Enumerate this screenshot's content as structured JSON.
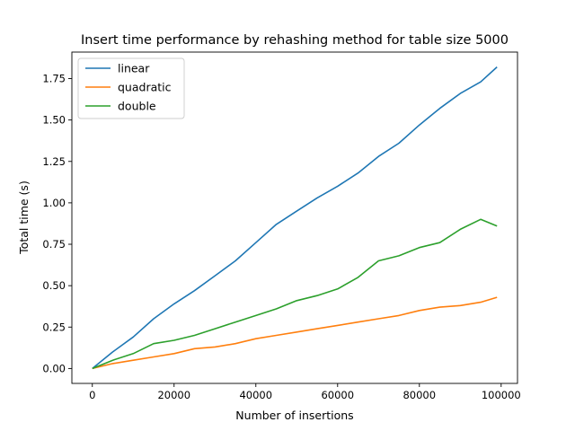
{
  "chart_data": {
    "type": "line",
    "title": "Insert time performance by rehashing method for table size 5000",
    "xlabel": "Number of insertions",
    "ylabel": "Total time (s)",
    "xlim": [
      -5000,
      104000
    ],
    "ylim": [
      -0.09,
      1.91
    ],
    "xticks": [
      0,
      20000,
      40000,
      60000,
      80000,
      100000
    ],
    "xtick_labels": [
      "0",
      "20000",
      "40000",
      "60000",
      "80000",
      "100000"
    ],
    "yticks": [
      0.0,
      0.25,
      0.5,
      0.75,
      1.0,
      1.25,
      1.5,
      1.75
    ],
    "ytick_labels": [
      "0.00",
      "0.25",
      "0.50",
      "0.75",
      "1.00",
      "1.25",
      "1.50",
      "1.75"
    ],
    "grid": false,
    "legend_position": "top-left",
    "colors": {
      "linear": "#1f77b4",
      "quadratic": "#ff7f0e",
      "double": "#2ca02c"
    },
    "x": [
      0,
      5000,
      10000,
      15000,
      20000,
      25000,
      30000,
      35000,
      40000,
      45000,
      50000,
      55000,
      60000,
      65000,
      70000,
      75000,
      80000,
      85000,
      90000,
      95000,
      99000
    ],
    "series": [
      {
        "name": "linear",
        "color": "#1f77b4",
        "values": [
          0.0,
          0.1,
          0.19,
          0.3,
          0.39,
          0.47,
          0.56,
          0.65,
          0.76,
          0.87,
          0.95,
          1.03,
          1.1,
          1.18,
          1.28,
          1.36,
          1.47,
          1.57,
          1.66,
          1.73,
          1.82
        ]
      },
      {
        "name": "quadratic",
        "color": "#ff7f0e",
        "values": [
          0.0,
          0.03,
          0.05,
          0.07,
          0.09,
          0.12,
          0.13,
          0.15,
          0.18,
          0.2,
          0.22,
          0.24,
          0.26,
          0.28,
          0.3,
          0.32,
          0.35,
          0.37,
          0.38,
          0.4,
          0.43
        ]
      },
      {
        "name": "double",
        "color": "#2ca02c",
        "values": [
          0.0,
          0.05,
          0.09,
          0.15,
          0.17,
          0.2,
          0.24,
          0.28,
          0.32,
          0.36,
          0.41,
          0.44,
          0.48,
          0.55,
          0.65,
          0.68,
          0.73,
          0.76,
          0.84,
          0.9,
          0.86
        ]
      }
    ]
  }
}
